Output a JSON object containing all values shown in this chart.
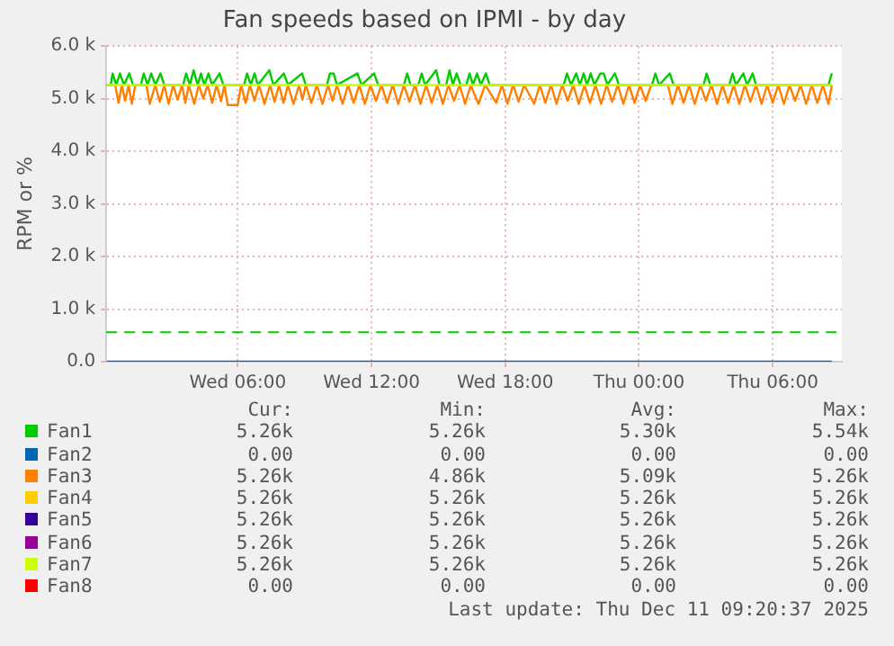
{
  "chart_data": {
    "type": "line",
    "title": "Fan speeds based on IPMI - by day",
    "ylabel": "RPM or %",
    "xlim": [
      "2025-12-10T00:06",
      "2025-12-11T09:06"
    ],
    "xticks": [
      {
        "value": "2025-12-10T06:00",
        "label": "Wed 06:00"
      },
      {
        "value": "2025-12-10T12:00",
        "label": "Wed 12:00"
      },
      {
        "value": "2025-12-10T18:00",
        "label": "Wed 18:00"
      },
      {
        "value": "2025-12-11T00:00",
        "label": "Thu 00:00"
      },
      {
        "value": "2025-12-11T06:00",
        "label": "Thu 06:00"
      }
    ],
    "ylim": [
      0,
      6000
    ],
    "yticks": [
      {
        "value": 0,
        "label": "0.0"
      },
      {
        "value": 1000,
        "label": "1.0 k"
      },
      {
        "value": 2000,
        "label": "2.0 k"
      },
      {
        "value": 3000,
        "label": "3.0 k"
      },
      {
        "value": 4000,
        "label": "4.0 k"
      },
      {
        "value": 5000,
        "label": "5.0 k"
      },
      {
        "value": 6000,
        "label": "6.0 k"
      }
    ],
    "grid": true,
    "legend": "bottom",
    "marker": "none",
    "line_style": "solid",
    "ref_lines": [
      {
        "axis": "y",
        "value": 560,
        "color": "#00cc00",
        "line_style": "dashed"
      }
    ],
    "series": [
      {
        "name": "Fan1",
        "color": "#00cc00",
        "x": [
          "2025-12-10T00:07",
          "2025-12-10T00:18",
          "2025-12-10T00:23",
          "2025-12-10T00:33",
          "2025-12-10T00:43",
          "2025-12-10T00:54",
          "2025-12-10T01:08",
          "2025-12-10T01:18",
          "2025-12-10T01:39",
          "2025-12-10T01:47",
          "2025-12-10T01:57",
          "2025-12-10T02:07",
          "2025-12-10T02:18",
          "2025-12-10T02:32",
          "2025-12-10T02:42",
          "2025-12-10T03:33",
          "2025-12-10T03:41",
          "2025-12-10T03:51",
          "2025-12-10T04:01",
          "2025-12-10T04:12",
          "2025-12-10T04:21",
          "2025-12-10T04:30",
          "2025-12-10T04:41",
          "2025-12-10T04:51",
          "2025-12-10T05:11",
          "2025-12-10T05:21",
          "2025-12-10T06:17",
          "2025-12-10T06:25",
          "2025-12-10T06:35",
          "2025-12-10T06:45",
          "2025-12-10T06:54",
          "2025-12-10T07:25",
          "2025-12-10T07:36",
          "2025-12-10T08:04",
          "2025-12-10T08:15",
          "2025-12-10T08:53",
          "2025-12-10T09:03",
          "2025-12-10T10:00",
          "2025-12-10T10:08",
          "2025-12-10T10:18",
          "2025-12-10T10:27",
          "2025-12-10T11:22",
          "2025-12-10T11:33",
          "2025-12-10T12:07",
          "2025-12-10T12:18",
          "2025-12-10T13:27",
          "2025-12-10T13:36",
          "2025-12-10T13:45",
          "2025-12-10T14:06",
          "2025-12-10T14:15",
          "2025-12-10T14:24",
          "2025-12-10T14:54",
          "2025-12-10T15:03",
          "2025-12-10T15:21",
          "2025-12-10T15:30",
          "2025-12-10T15:39",
          "2025-12-10T15:49",
          "2025-12-10T16:00",
          "2025-12-10T16:15",
          "2025-12-10T16:24",
          "2025-12-10T16:33",
          "2025-12-10T16:44",
          "2025-12-10T16:54",
          "2025-12-10T17:08",
          "2025-12-10T17:18",
          "2025-12-10T20:37",
          "2025-12-10T20:46",
          "2025-12-10T20:57",
          "2025-12-10T21:11",
          "2025-12-10T21:21",
          "2025-12-10T21:31",
          "2025-12-10T21:40",
          "2025-12-10T21:50",
          "2025-12-10T22:00",
          "2025-12-10T22:16",
          "2025-12-10T22:25",
          "2025-12-10T22:35",
          "2025-12-10T22:55",
          "2025-12-10T23:06",
          "2025-12-11T00:35",
          "2025-12-11T00:44",
          "2025-12-11T00:54",
          "2025-12-11T01:23",
          "2025-12-11T01:33",
          "2025-12-11T02:54",
          "2025-12-11T03:02",
          "2025-12-11T03:12",
          "2025-12-11T04:03",
          "2025-12-11T04:12",
          "2025-12-11T04:21",
          "2025-12-11T04:41",
          "2025-12-11T04:51",
          "2025-12-11T05:06",
          "2025-12-11T05:15",
          "2025-12-11T08:30",
          "2025-12-11T08:39"
        ],
        "values": [
          5260,
          5260,
          5480,
          5260,
          5480,
          5260,
          5480,
          5260,
          5260,
          5480,
          5260,
          5480,
          5260,
          5480,
          5260,
          5260,
          5480,
          5260,
          5540,
          5260,
          5480,
          5260,
          5480,
          5260,
          5480,
          5260,
          5260,
          5480,
          5260,
          5480,
          5260,
          5540,
          5260,
          5480,
          5260,
          5480,
          5260,
          5260,
          5480,
          5480,
          5260,
          5480,
          5260,
          5480,
          5260,
          5260,
          5480,
          5260,
          5260,
          5480,
          5260,
          5540,
          5260,
          5260,
          5540,
          5260,
          5480,
          5260,
          5260,
          5480,
          5260,
          5480,
          5260,
          5480,
          5260,
          5260,
          5480,
          5260,
          5480,
          5260,
          5480,
          5260,
          5480,
          5260,
          5480,
          5480,
          5260,
          5480,
          5260,
          5260,
          5480,
          5260,
          5480,
          5260,
          5260,
          5480,
          5260,
          5260,
          5480,
          5260,
          5480,
          5260,
          5480,
          5260,
          5260,
          5480
        ]
      },
      {
        "name": "Fan2",
        "color": "#0066b3",
        "x": [
          "2025-12-10T00:07",
          "2025-12-11T08:39"
        ],
        "values": [
          0,
          0
        ]
      },
      {
        "name": "Fan3",
        "color": "#ff8000",
        "x": [
          "2025-12-10T00:07",
          "2025-12-10T00:30",
          "2025-12-10T00:39",
          "2025-12-10T00:48",
          "2025-12-10T00:57",
          "2025-12-10T01:06",
          "2025-12-10T01:15",
          "2025-12-10T01:24",
          "2025-12-10T01:54",
          "2025-12-10T02:03",
          "2025-12-10T02:18",
          "2025-12-10T02:30",
          "2025-12-10T02:42",
          "2025-12-10T02:54",
          "2025-12-10T03:06",
          "2025-12-10T03:18",
          "2025-12-10T03:30",
          "2025-12-10T03:39",
          "2025-12-10T03:48",
          "2025-12-10T04:03",
          "2025-12-10T04:15",
          "2025-12-10T04:27",
          "2025-12-10T04:39",
          "2025-12-10T04:51",
          "2025-12-10T05:03",
          "2025-12-10T05:15",
          "2025-12-10T05:24",
          "2025-12-10T05:33",
          "2025-12-10T06:00",
          "2025-12-10T06:09",
          "2025-12-10T06:21",
          "2025-12-10T06:33",
          "2025-12-10T06:45",
          "2025-12-10T06:57",
          "2025-12-10T07:12",
          "2025-12-10T07:27",
          "2025-12-10T07:39",
          "2025-12-10T07:51",
          "2025-12-10T08:03",
          "2025-12-10T08:15",
          "2025-12-10T08:30",
          "2025-12-10T08:45",
          "2025-12-10T08:54",
          "2025-12-10T09:03",
          "2025-12-10T09:18",
          "2025-12-10T09:33",
          "2025-12-10T09:48",
          "2025-12-10T10:03",
          "2025-12-10T10:15",
          "2025-12-10T10:27",
          "2025-12-10T10:42",
          "2025-12-10T10:57",
          "2025-12-10T11:12",
          "2025-12-10T11:27",
          "2025-12-10T11:42",
          "2025-12-10T11:57",
          "2025-12-10T12:12",
          "2025-12-10T12:27",
          "2025-12-10T12:42",
          "2025-12-10T12:57",
          "2025-12-10T13:12",
          "2025-12-10T13:27",
          "2025-12-10T13:42",
          "2025-12-10T13:57",
          "2025-12-10T14:12",
          "2025-12-10T14:27",
          "2025-12-10T14:42",
          "2025-12-10T14:57",
          "2025-12-10T15:12",
          "2025-12-10T15:27",
          "2025-12-10T15:42",
          "2025-12-10T15:57",
          "2025-12-10T16:12",
          "2025-12-10T16:27",
          "2025-12-10T16:48",
          "2025-12-10T17:06",
          "2025-12-10T17:36",
          "2025-12-10T17:51",
          "2025-12-10T18:06",
          "2025-12-10T18:21",
          "2025-12-10T18:36",
          "2025-12-10T18:51",
          "2025-12-10T19:18",
          "2025-12-10T19:33",
          "2025-12-10T19:48",
          "2025-12-10T20:03",
          "2025-12-10T20:18",
          "2025-12-10T20:33",
          "2025-12-10T20:48",
          "2025-12-10T21:03",
          "2025-12-10T21:18",
          "2025-12-10T21:33",
          "2025-12-10T21:48",
          "2025-12-10T22:03",
          "2025-12-10T22:18",
          "2025-12-10T22:33",
          "2025-12-10T22:48",
          "2025-12-10T23:03",
          "2025-12-10T23:18",
          "2025-12-10T23:33",
          "2025-12-10T23:48",
          "2025-12-11T00:03",
          "2025-12-11T00:18",
          "2025-12-11T00:33",
          "2025-12-11T01:18",
          "2025-12-11T01:30",
          "2025-12-11T01:45",
          "2025-12-11T02:00",
          "2025-12-11T02:15",
          "2025-12-11T02:30",
          "2025-12-11T02:45",
          "2025-12-11T03:00",
          "2025-12-11T03:15",
          "2025-12-11T03:30",
          "2025-12-11T03:45",
          "2025-12-11T04:00",
          "2025-12-11T04:15",
          "2025-12-11T04:30",
          "2025-12-11T04:45",
          "2025-12-11T05:00",
          "2025-12-11T05:15",
          "2025-12-11T05:30",
          "2025-12-11T05:45",
          "2025-12-11T06:00",
          "2025-12-11T06:15",
          "2025-12-11T06:30",
          "2025-12-11T06:45",
          "2025-12-11T07:00",
          "2025-12-11T07:15",
          "2025-12-11T07:30",
          "2025-12-11T07:45",
          "2025-12-11T08:00",
          "2025-12-11T08:15",
          "2025-12-11T08:30",
          "2025-12-11T08:39"
        ],
        "values": [
          5260,
          5260,
          4920,
          5260,
          4960,
          5260,
          4900,
          5260,
          5260,
          4900,
          5260,
          4940,
          5260,
          4900,
          5260,
          4980,
          5260,
          4920,
          5260,
          4900,
          5260,
          5000,
          5260,
          4920,
          5260,
          4950,
          5260,
          4880,
          4880,
          5260,
          4920,
          5260,
          4960,
          5260,
          4900,
          5260,
          4940,
          5260,
          4920,
          5260,
          4900,
          5260,
          4980,
          5260,
          4920,
          5260,
          4900,
          5260,
          4960,
          5260,
          4900,
          5260,
          4920,
          5260,
          4900,
          5260,
          4960,
          5260,
          4920,
          5260,
          4900,
          5260,
          4940,
          5260,
          4900,
          5260,
          4920,
          5260,
          4900,
          5260,
          4960,
          5260,
          4900,
          5260,
          4900,
          5260,
          4920,
          5260,
          4900,
          5260,
          4940,
          5260,
          4900,
          5260,
          4920,
          5260,
          4900,
          5260,
          4960,
          5260,
          4900,
          5260,
          4920,
          5260,
          4900,
          5260,
          4940,
          5260,
          4900,
          5260,
          4920,
          5260,
          4960,
          5260,
          5260,
          4900,
          5260,
          4920,
          5260,
          4900,
          5260,
          4960,
          5260,
          4900,
          5260,
          4920,
          5260,
          4900,
          5260,
          4940,
          5260,
          4900,
          5260,
          4920,
          5260,
          4900,
          5260,
          4960,
          5260,
          4900,
          5260,
          4920,
          5260,
          4900,
          5260
        ]
      },
      {
        "name": "Fan4",
        "color": "#ffcc00"
      },
      {
        "name": "Fan5",
        "color": "#330099"
      },
      {
        "name": "Fan6",
        "color": "#990099"
      },
      {
        "name": "Fan7",
        "color": "#ccff00",
        "x": [
          "2025-12-10T00:07",
          "2025-12-11T08:39"
        ],
        "values": [
          5260,
          5260
        ]
      },
      {
        "name": "Fan8",
        "color": "#ff0000"
      }
    ],
    "annotations": [
      "Cur:",
      "Min:",
      "Avg:",
      "Max:",
      "5.26k",
      "5.26k",
      "5.30k",
      "5.54k",
      "0.00",
      "0.00",
      "0.00",
      "0.00",
      "5.26k",
      "4.86k",
      "5.09k",
      "5.26k",
      "5.26k",
      "5.26k",
      "5.26k",
      "5.26k",
      "5.26k",
      "5.26k",
      "5.26k",
      "5.26k",
      "5.26k",
      "5.26k",
      "5.26k",
      "5.26k",
      "5.26k",
      "5.26k",
      "5.26k",
      "5.26k",
      "0.00",
      "0.00",
      "0.00",
      "0.00",
      "Last update: Thu Dec 11 09:20:37 2025"
    ]
  }
}
